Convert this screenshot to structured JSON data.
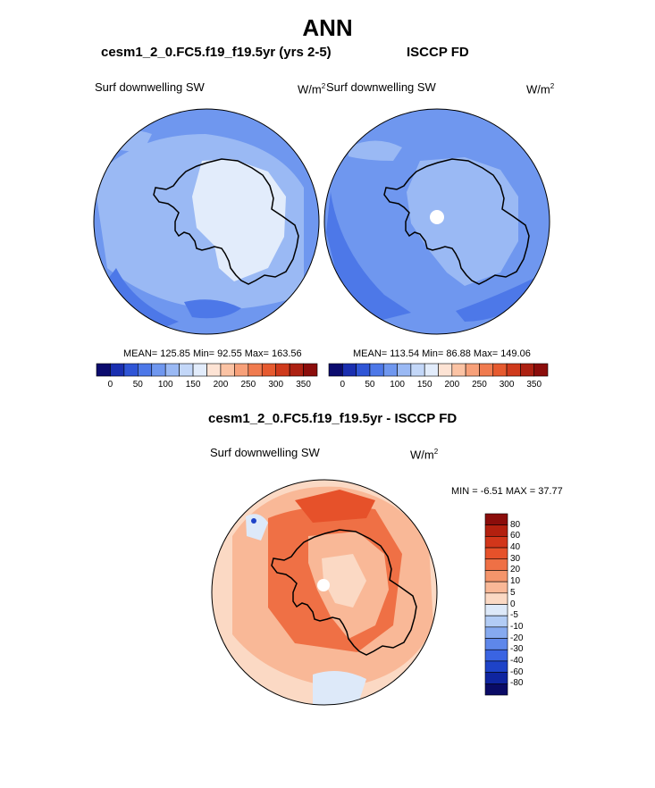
{
  "page": {
    "title": "ANN"
  },
  "panels": [
    {
      "heading": "cesm1_2_0.FC5.f19_f19.5yr (yrs 2-5)",
      "variable": "Surf downwelling SW",
      "units_base": "W/m",
      "units_exp": "2",
      "stats": "MEAN= 125.85  Min=  92.55  Max= 163.56"
    },
    {
      "heading": "ISCCP FD",
      "variable": "Surf downwelling SW",
      "units_base": "W/m",
      "units_exp": "2",
      "stats": "MEAN= 113.54  Min=  86.88  Max= 149.06"
    }
  ],
  "colorbar_top": {
    "ticks": [
      "0",
      "50",
      "100",
      "150",
      "200",
      "250",
      "300",
      "350"
    ],
    "colors": [
      "#0b0b6e",
      "#1a2fb0",
      "#2f55d6",
      "#4d78e8",
      "#6f97ef",
      "#9ab9f4",
      "#c3d7f8",
      "#e2ecfb",
      "#fde3d4",
      "#fbc3a4",
      "#f7a079",
      "#f07b4f",
      "#e65a2f",
      "#cf3a1c",
      "#ad2112",
      "#8b0d0b"
    ]
  },
  "difference": {
    "heading": "cesm1_2_0.FC5.f19_f19.5yr - ISCCP FD",
    "variable": "Surf downwelling SW",
    "units_base": "W/m",
    "units_exp": "2",
    "stats": "MIN =  -6.51 MAX =  37.77",
    "colorbar": {
      "labels": [
        "80",
        "60",
        "40",
        "30",
        "20",
        "10",
        "5",
        "0",
        "-5",
        "-10",
        "-20",
        "-30",
        "-40",
        "-60",
        "-80"
      ],
      "colors": [
        "#8b0d0b",
        "#b3200f",
        "#d2361a",
        "#e6512a",
        "#ef7045",
        "#f5956b",
        "#f9b897",
        "#fbd9c4",
        "#dde9f9",
        "#b2ccf5",
        "#86aaf0",
        "#5e87ea",
        "#3a64e2",
        "#1e43c8",
        "#0f25a0",
        "#0a0b66"
      ]
    }
  }
}
